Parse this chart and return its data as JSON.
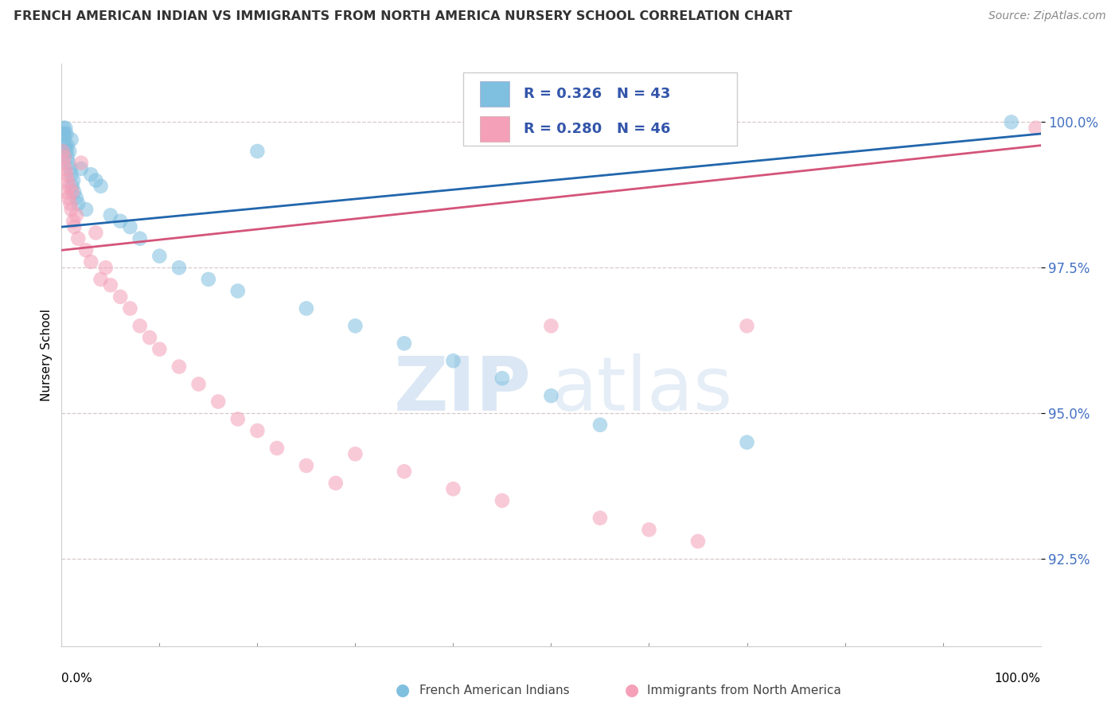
{
  "title": "FRENCH AMERICAN INDIAN VS IMMIGRANTS FROM NORTH AMERICA NURSERY SCHOOL CORRELATION CHART",
  "source": "Source: ZipAtlas.com",
  "ylabel": "Nursery School",
  "yticks": [
    92.5,
    95.0,
    97.5,
    100.0
  ],
  "ytick_labels": [
    "92.5%",
    "95.0%",
    "97.5%",
    "100.0%"
  ],
  "xlim": [
    0.0,
    100.0
  ],
  "ylim": [
    91.0,
    101.0
  ],
  "blue_R": 0.326,
  "blue_N": 43,
  "pink_R": 0.28,
  "pink_N": 46,
  "blue_color": "#7fbfdf",
  "pink_color": "#f4a0b8",
  "blue_line_color": "#2166ac",
  "pink_line_color": "#d4547a",
  "legend_label_blue": "French American Indians",
  "legend_label_pink": "Immigrants from North America",
  "watermark_zip": "ZIP",
  "watermark_atlas": "atlas",
  "blue_x": [
    0.1,
    0.2,
    0.3,
    0.3,
    0.4,
    0.4,
    0.5,
    0.5,
    0.6,
    0.6,
    0.7,
    0.8,
    0.9,
    1.0,
    1.0,
    1.1,
    1.2,
    1.3,
    1.5,
    1.7,
    2.0,
    2.5,
    3.0,
    3.5,
    4.0,
    5.0,
    6.0,
    7.0,
    8.0,
    10.0,
    12.0,
    15.0,
    18.0,
    20.0,
    25.0,
    30.0,
    35.0,
    40.0,
    45.0,
    50.0,
    55.0,
    70.0,
    97.0
  ],
  "blue_y": [
    99.8,
    99.9,
    99.7,
    99.8,
    99.6,
    99.9,
    99.5,
    99.8,
    99.4,
    99.6,
    99.3,
    99.5,
    99.2,
    99.1,
    99.7,
    98.9,
    99.0,
    98.8,
    98.7,
    98.6,
    99.2,
    98.5,
    99.1,
    99.0,
    98.9,
    98.4,
    98.3,
    98.2,
    98.0,
    97.7,
    97.5,
    97.3,
    97.1,
    99.5,
    96.8,
    96.5,
    96.2,
    95.9,
    95.6,
    95.3,
    94.8,
    94.5,
    100.0
  ],
  "pink_x": [
    0.1,
    0.2,
    0.3,
    0.4,
    0.5,
    0.5,
    0.6,
    0.7,
    0.8,
    0.9,
    1.0,
    1.1,
    1.2,
    1.3,
    1.5,
    1.7,
    2.0,
    2.5,
    3.0,
    3.5,
    4.0,
    4.5,
    5.0,
    6.0,
    7.0,
    8.0,
    9.0,
    10.0,
    12.0,
    14.0,
    16.0,
    18.0,
    20.0,
    22.0,
    25.0,
    28.0,
    30.0,
    35.0,
    40.0,
    45.0,
    50.0,
    55.0,
    60.0,
    65.0,
    70.0,
    99.5
  ],
  "pink_y": [
    99.5,
    99.3,
    99.4,
    99.2,
    99.1,
    98.8,
    99.0,
    98.7,
    98.9,
    98.6,
    98.5,
    98.8,
    98.3,
    98.2,
    98.4,
    98.0,
    99.3,
    97.8,
    97.6,
    98.1,
    97.3,
    97.5,
    97.2,
    97.0,
    96.8,
    96.5,
    96.3,
    96.1,
    95.8,
    95.5,
    95.2,
    94.9,
    94.7,
    94.4,
    94.1,
    93.8,
    94.3,
    94.0,
    93.7,
    93.5,
    96.5,
    93.2,
    93.0,
    92.8,
    96.5,
    99.9
  ],
  "trendline_x_start": 0.0,
  "trendline_x_end": 100.0,
  "blue_trend_y_start": 98.2,
  "blue_trend_y_end": 99.8,
  "pink_trend_y_start": 97.8,
  "pink_trend_y_end": 99.6
}
